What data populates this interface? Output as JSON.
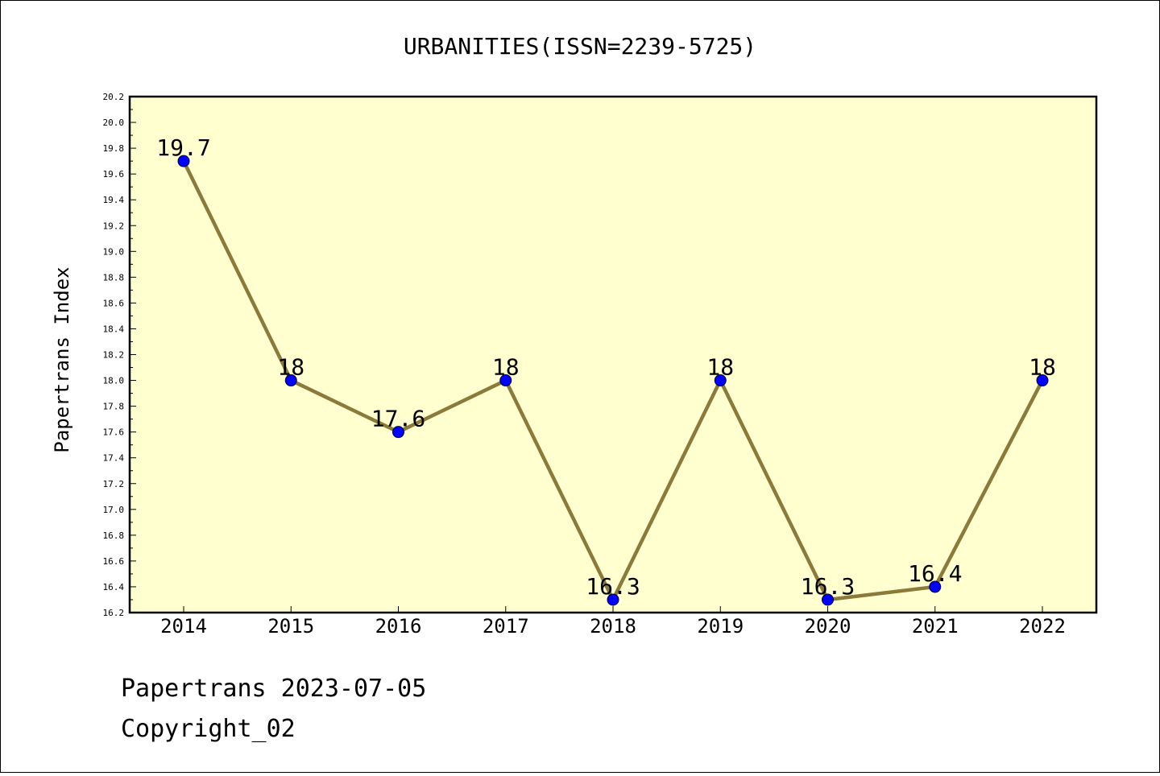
{
  "chart_data": {
    "type": "line",
    "title": "URBANITIES(ISSN=2239-5725)",
    "xlabel": "",
    "ylabel": "Papertrans Index",
    "categories": [
      "2014",
      "2015",
      "2016",
      "2017",
      "2018",
      "2019",
      "2020",
      "2021",
      "2022"
    ],
    "series": [
      {
        "values": [
          19.7,
          18,
          17.6,
          18,
          16.3,
          18,
          16.3,
          16.4,
          18
        ]
      }
    ],
    "data_labels": [
      "19.7",
      "18",
      "17.6",
      "18",
      "16.3",
      "18",
      "16.3",
      "16.4",
      "18"
    ],
    "ylim": [
      16.2,
      20.2
    ],
    "yticks": [
      "16.2",
      "16.4",
      "16.6",
      "16.8",
      "17.0",
      "17.2",
      "17.4",
      "17.6",
      "17.8",
      "18.0",
      "18.2",
      "18.4",
      "18.6",
      "18.8",
      "19.0",
      "19.2",
      "19.4",
      "19.6",
      "19.8",
      "20.0",
      "20.2"
    ],
    "grid": false,
    "colors": {
      "plot_background": "#ffffd0",
      "line": "#8b7a3a",
      "marker": "#0000ff"
    }
  },
  "footer": {
    "line1": "Papertrans 2023-07-05",
    "line2": "Copyright_02"
  }
}
